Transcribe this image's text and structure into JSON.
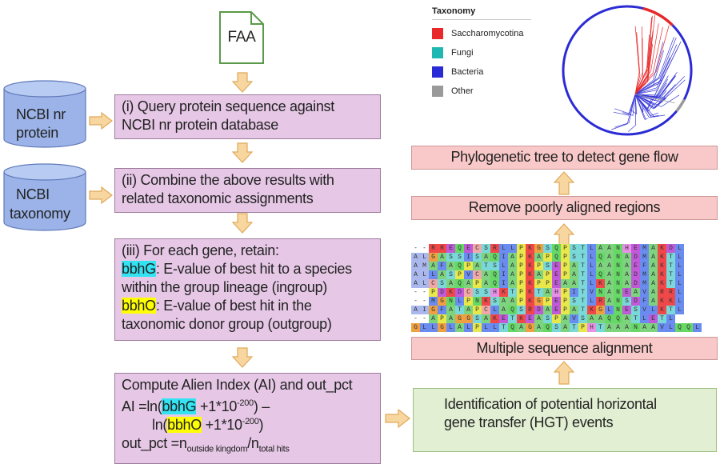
{
  "faa_label": "FAA",
  "db_nr": {
    "line1": "NCBI nr",
    "line2": "protein"
  },
  "db_tax": {
    "line1": "NCBI",
    "line2": "taxonomy"
  },
  "step1": {
    "line1": "(i)  Query protein sequence against",
    "line2": "NCBI nr protein database"
  },
  "step2": {
    "line1": "(ii)  Combine the above results with",
    "line2": "related  taxonomic assignments"
  },
  "step3": {
    "line1": "(iii)  For each gene, retain:",
    "bbhG": "bbhG",
    "bbhG_desc1": ": E-value of best hit to a species",
    "bbhG_desc2": "within the group lineage (ingroup)",
    "bbhO": "bbhO",
    "bbhO_desc1": ": E-value of best hit in the",
    "bbhO_desc2": "taxonomic donor group (outgroup)"
  },
  "step4": {
    "title": "Compute Alien Index (AI) and out_pct",
    "ai_prefix": "AI =ln(",
    "bbhG": "bbhG",
    "term1_mid": "  +1*10",
    "exp": "-200",
    "term1_end": ")   –",
    "ln2_prefix": "ln(",
    "bbhO": "bbhO",
    "term2_mid": "  +1*10",
    "term2_end": ")",
    "out_prefix": "out_pct =n",
    "sub1": "outside kingdom",
    "slash": "/n",
    "sub2": "total hits"
  },
  "hgt": {
    "line1": "Identification of potential horizontal",
    "line2": "gene transfer (HGT) events"
  },
  "msa_label": "Multiple  sequence alignment",
  "remove_label": "Remove poorly aligned regions",
  "phylo_label": "Phylogenetic tree to detect gene flow",
  "legend": {
    "title": "Taxonomy",
    "items": [
      {
        "label": "Saccharomycotina",
        "color": "#e8282a"
      },
      {
        "label": "Fungi",
        "color": "#1fb7b2"
      },
      {
        "label": "Bacteria",
        "color": "#2b2bd6"
      },
      {
        "label": "Other",
        "color": "#9a9a9a"
      }
    ]
  },
  "alignment": {
    "rows": [
      "--RREQECSRLLPKGSQPSTLAANHEMAKDL",
      "ALGASSISAQIAPKAPQPSTLQANADMAKTL",
      "AMAFAQPATSLAPKPSEPATLAANAEFAKTL",
      "ALLASPVCAQIAPKAPEPATLQANADMAKTL",
      "ALCSAQAPAQIAPKPPEAATLKANADMAKTL",
      "--PDKDCSSHKTPKTAHPITVNANEAVARRL",
      "--MGNLPNKSAAPKGPEPSTLRANSDFAKKL",
      "AIGFATAPCLAQSRDAEPATKGLNESVLKTL",
      "--APAGGSAKETKEASPAVSAAQQATLETL",
      "GLLGLALPLLTQAGAQSATPHTAAANAAVLQQL"
    ]
  },
  "colors": {
    "arrow_fill": "#f8d6a0",
    "arrow_stroke": "#e0a95a",
    "db_fill": "#9bb3e8",
    "faa_stroke": "#5a9a4a"
  }
}
